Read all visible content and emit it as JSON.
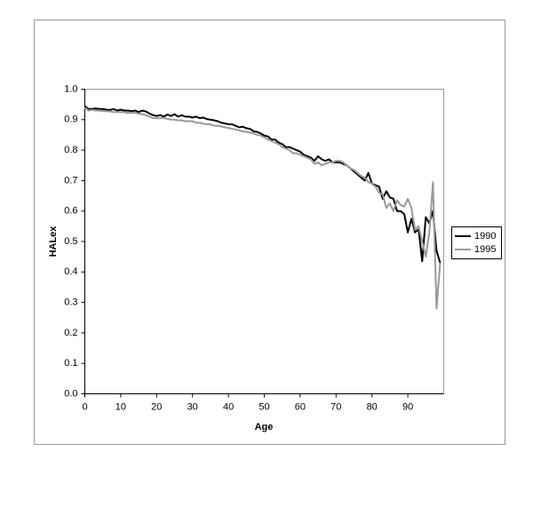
{
  "chart_data": {
    "type": "line",
    "x_label": "Age",
    "y_label": "HALex",
    "x": [
      0,
      1,
      2,
      3,
      4,
      5,
      6,
      7,
      8,
      9,
      10,
      11,
      12,
      13,
      14,
      15,
      16,
      17,
      18,
      19,
      20,
      21,
      22,
      23,
      24,
      25,
      26,
      27,
      28,
      29,
      30,
      31,
      32,
      33,
      34,
      35,
      36,
      37,
      38,
      39,
      40,
      41,
      42,
      43,
      44,
      45,
      46,
      47,
      48,
      49,
      50,
      51,
      52,
      53,
      54,
      55,
      56,
      57,
      58,
      59,
      60,
      61,
      62,
      63,
      64,
      65,
      66,
      67,
      68,
      69,
      70,
      71,
      72,
      73,
      74,
      75,
      76,
      77,
      78,
      79,
      80,
      81,
      82,
      83,
      84,
      85,
      86,
      87,
      88,
      89,
      90,
      91,
      92,
      93,
      94,
      95,
      96,
      97,
      98,
      99
    ],
    "series": [
      {
        "name": "1990",
        "color": "#000000",
        "width": 2,
        "values": [
          0.945,
          0.935,
          0.935,
          0.937,
          0.935,
          0.935,
          0.933,
          0.932,
          0.935,
          0.93,
          0.933,
          0.93,
          0.93,
          0.928,
          0.93,
          0.925,
          0.93,
          0.927,
          0.92,
          0.915,
          0.912,
          0.915,
          0.91,
          0.917,
          0.912,
          0.918,
          0.91,
          0.915,
          0.91,
          0.91,
          0.907,
          0.91,
          0.905,
          0.907,
          0.902,
          0.9,
          0.898,
          0.895,
          0.89,
          0.888,
          0.885,
          0.885,
          0.88,
          0.875,
          0.877,
          0.872,
          0.87,
          0.862,
          0.86,
          0.855,
          0.848,
          0.845,
          0.835,
          0.835,
          0.825,
          0.82,
          0.81,
          0.81,
          0.805,
          0.8,
          0.795,
          0.785,
          0.78,
          0.775,
          0.765,
          0.78,
          0.77,
          0.765,
          0.77,
          0.76,
          0.76,
          0.76,
          0.755,
          0.75,
          0.74,
          0.73,
          0.72,
          0.71,
          0.7,
          0.725,
          0.69,
          0.685,
          0.68,
          0.64,
          0.665,
          0.645,
          0.64,
          0.6,
          0.6,
          0.59,
          0.53,
          0.575,
          0.53,
          0.54,
          0.435,
          0.58,
          0.56,
          0.6,
          0.47,
          0.43
        ]
      },
      {
        "name": "1995",
        "color": "#999999",
        "width": 2,
        "values": [
          0.94,
          0.93,
          0.932,
          0.93,
          0.93,
          0.928,
          0.928,
          0.927,
          0.925,
          0.925,
          0.925,
          0.925,
          0.922,
          0.923,
          0.922,
          0.92,
          0.918,
          0.915,
          0.91,
          0.905,
          0.905,
          0.905,
          0.905,
          0.903,
          0.9,
          0.9,
          0.898,
          0.898,
          0.895,
          0.895,
          0.895,
          0.89,
          0.89,
          0.887,
          0.885,
          0.885,
          0.88,
          0.88,
          0.878,
          0.875,
          0.873,
          0.87,
          0.868,
          0.865,
          0.862,
          0.86,
          0.858,
          0.855,
          0.85,
          0.848,
          0.842,
          0.835,
          0.83,
          0.825,
          0.82,
          0.81,
          0.805,
          0.8,
          0.79,
          0.79,
          0.785,
          0.78,
          0.775,
          0.77,
          0.755,
          0.76,
          0.75,
          0.755,
          0.76,
          0.76,
          0.765,
          0.765,
          0.76,
          0.75,
          0.74,
          0.735,
          0.725,
          0.715,
          0.71,
          0.695,
          0.69,
          0.68,
          0.66,
          0.655,
          0.61,
          0.625,
          0.6,
          0.635,
          0.62,
          0.615,
          0.64,
          0.61,
          0.54,
          0.55,
          0.5,
          0.45,
          0.53,
          0.695,
          0.28,
          0.43
        ]
      }
    ],
    "xlim": [
      0,
      100
    ],
    "xticks": [
      0,
      10,
      20,
      30,
      40,
      50,
      60,
      70,
      80,
      90
    ],
    "ylim": [
      0,
      1
    ],
    "yticks": [
      {
        "value": 0,
        "label": "0.0"
      },
      0.1,
      0.2,
      0.3,
      0.4,
      0.5,
      0.6,
      0.7,
      0.8,
      0.9,
      {
        "value": 1,
        "label": "1.0"
      }
    ],
    "grid": false,
    "legend": "right"
  }
}
